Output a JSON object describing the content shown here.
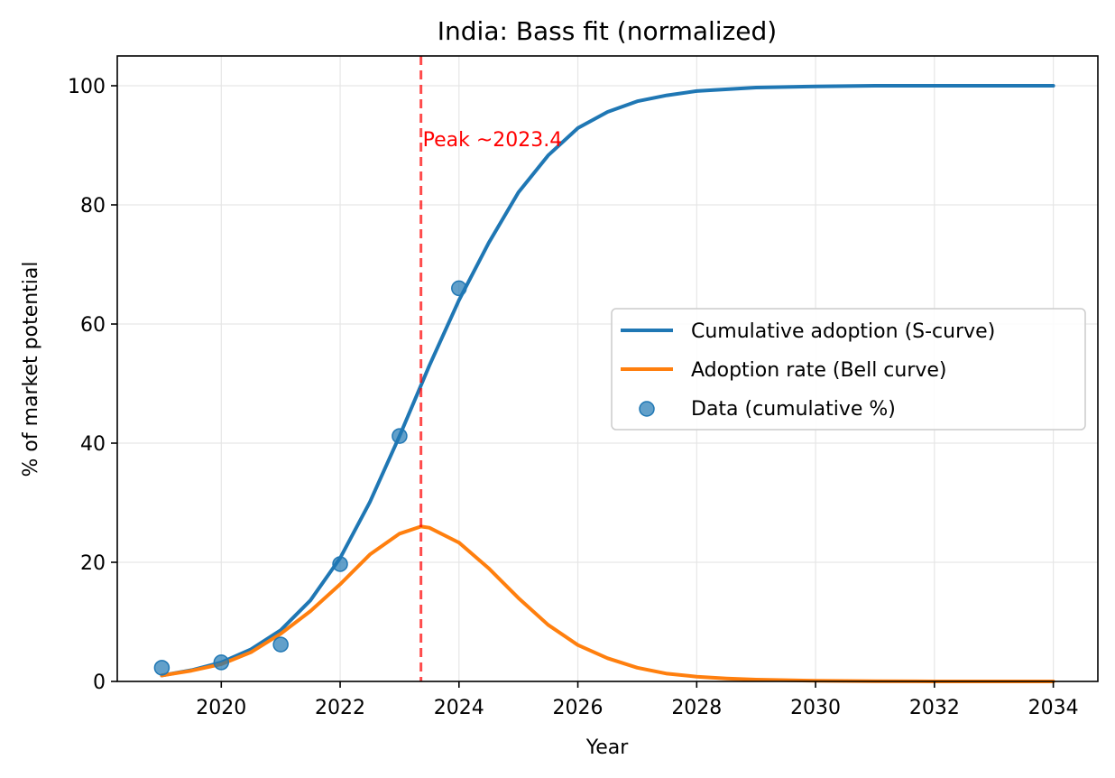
{
  "chart_data": {
    "type": "line",
    "title": "India: Bass fit (normalized)",
    "xlabel": "Year",
    "ylabel": "% of market potential",
    "xlim": [
      2018.25,
      2034.75
    ],
    "ylim": [
      0,
      105
    ],
    "xticks": [
      2020,
      2022,
      2024,
      2026,
      2028,
      2030,
      2032,
      2034
    ],
    "yticks": [
      0,
      20,
      40,
      60,
      80,
      100
    ],
    "grid": true,
    "legend": "center-right",
    "peak": {
      "x": 2023.36,
      "label": "Peak ~2023.4",
      "color": "#ff0000"
    },
    "series": [
      {
        "name": "Cumulative adoption (S-curve)",
        "kind": "line",
        "color": "#1f77b4",
        "x": [
          2019,
          2019.5,
          2020,
          2020.5,
          2021,
          2021.5,
          2022,
          2022.5,
          2023,
          2023.5,
          2024,
          2024.5,
          2025,
          2025.5,
          2026,
          2026.5,
          2027,
          2027.5,
          2028,
          2029,
          2030,
          2031,
          2032,
          2033,
          2034
        ],
        "values": [
          1.0,
          1.9,
          3.2,
          5.4,
          8.6,
          13.6,
          20.7,
          30.1,
          41.2,
          53.0,
          64.0,
          73.6,
          82.1,
          88.3,
          92.9,
          95.6,
          97.4,
          98.4,
          99.1,
          99.7,
          99.9,
          100.0,
          100.0,
          100.0,
          100.0
        ]
      },
      {
        "name": "Adoption rate (Bell curve)",
        "kind": "line",
        "color": "#ff7f0e",
        "x": [
          2019,
          2019.5,
          2020,
          2020.5,
          2021,
          2021.5,
          2022,
          2022.5,
          2023,
          2023.36,
          2023.5,
          2024,
          2024.5,
          2025,
          2025.5,
          2026,
          2026.5,
          2027,
          2027.5,
          2028,
          2028.5,
          2029,
          2030,
          2031,
          2032,
          2033,
          2034
        ],
        "values": [
          1.0,
          1.8,
          2.9,
          4.9,
          8.0,
          11.8,
          16.3,
          21.3,
          24.8,
          26.0,
          25.8,
          23.3,
          19.0,
          14.0,
          9.5,
          6.1,
          3.9,
          2.3,
          1.3,
          0.8,
          0.5,
          0.3,
          0.1,
          0.05,
          0.0,
          0.0,
          0.0
        ]
      },
      {
        "name": "Data (cumulative %)",
        "kind": "scatter",
        "color": "#1f77b4",
        "x": [
          2019,
          2020,
          2021,
          2022,
          2023,
          2024
        ],
        "values": [
          2.3,
          3.2,
          6.2,
          19.7,
          41.2,
          66.0
        ]
      }
    ]
  }
}
